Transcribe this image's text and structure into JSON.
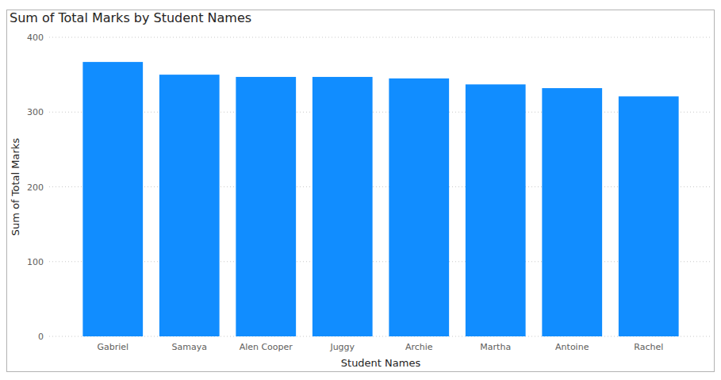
{
  "chart_data": {
    "type": "bar",
    "title": "Sum of Total Marks by Student Names",
    "x_label": "Student Names",
    "y_label": "Sum of Total Marks",
    "categories": [
      "Gabriel",
      "Samaya",
      "Alen Cooper",
      "Juggy",
      "Archie",
      "Martha",
      "Antoine",
      "Rachel"
    ],
    "values": [
      367,
      350,
      347,
      347,
      345,
      337,
      332,
      321
    ],
    "color": "#118dff",
    "ylim": [
      0,
      400
    ],
    "yticks": [
      0,
      100,
      200,
      300,
      400
    ],
    "grid": true
  }
}
